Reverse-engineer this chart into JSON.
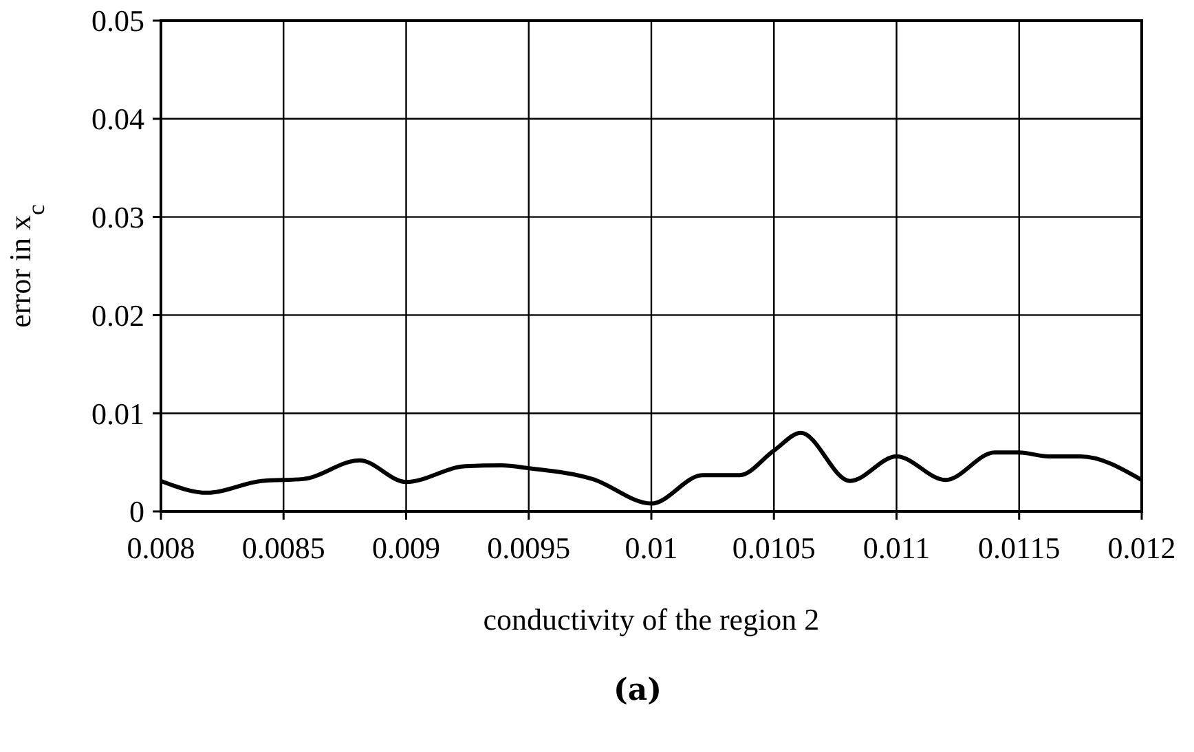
{
  "chart_data": {
    "type": "line",
    "xlabel": "conductivity of the region 2",
    "ylabel": "error in x$_{c}$",
    "annotations": [
      "(a)"
    ],
    "x": [
      0.008,
      0.00819,
      0.00841,
      0.00858,
      0.00881,
      0.009,
      0.00924,
      0.00939,
      0.0095,
      0.00976,
      0.01,
      0.01021,
      0.01036,
      0.0105,
      0.01061,
      0.01081,
      0.011,
      0.0112,
      0.0114,
      0.0115,
      0.01162,
      0.01175,
      0.012
    ],
    "series": [
      {
        "color": "#000000",
        "values": [
          0.0031,
          0.0019,
          0.0031,
          0.0033,
          0.0052,
          0.003,
          0.0046,
          0.0047,
          0.0044,
          0.0033,
          0.0008,
          0.0037,
          0.0037,
          0.0062,
          0.008,
          0.0031,
          0.0056,
          0.0032,
          0.006,
          0.006,
          0.0056,
          0.0056,
          0.0032
        ]
      }
    ],
    "xlim": [
      0.008,
      0.012
    ],
    "xticks": [
      0.008,
      0.0085,
      0.009,
      0.0095,
      0.01,
      0.0105,
      0.011,
      0.0115,
      0.012
    ],
    "ylim": [
      0,
      0.05
    ],
    "yticks": [
      0,
      0.01,
      0.02,
      0.03,
      0.04,
      0.05
    ],
    "grid": true,
    "marker": "none",
    "line_style": "solid"
  }
}
